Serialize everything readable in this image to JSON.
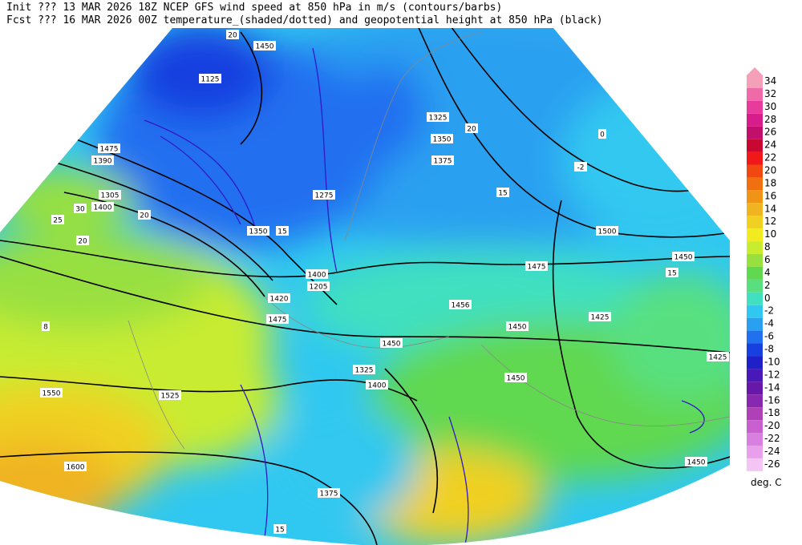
{
  "header": {
    "line1": "Init  ??? 13 MAR 2026 18Z  NCEP GFS wind speed at 850 hPa in m/s (contours/barbs)",
    "line2": "Fcst ??? 16 MAR 2026 00Z  temperature_(shaded/dotted) and geopotential height at 850 hPa (black)"
  },
  "colorbar": {
    "levels": [
      "34",
      "32",
      "30",
      "28",
      "26",
      "24",
      "22",
      "20",
      "18",
      "16",
      "14",
      "12",
      "10",
      "8",
      "6",
      "4",
      "2",
      "0",
      "-2",
      "-4",
      "-6",
      "-8",
      "-10",
      "-12",
      "-14",
      "-16",
      "-18",
      "-20",
      "-22",
      "-24",
      "-26"
    ],
    "colors": [
      "#f4a0b8",
      "#ee6aa8",
      "#e83c9c",
      "#d81c8c",
      "#c0106c",
      "#c80830",
      "#f01818",
      "#f04810",
      "#f07010",
      "#f09418",
      "#f0b420",
      "#f0d020",
      "#f0ec20",
      "#c8ec30",
      "#98e040",
      "#60d850",
      "#58e080",
      "#40e0c0",
      "#30c8f0",
      "#2aa0f0",
      "#2070f0",
      "#1840e0",
      "#2020c8",
      "#4818b8",
      "#6818a8",
      "#8828b0",
      "#b040b8",
      "#c860d0",
      "#d880e0",
      "#e8a0ec",
      "#f4c4f4"
    ],
    "unit": "deg. C"
  },
  "map_labels": [
    "1450",
    "20",
    "1125",
    "1475",
    "1390",
    "1305",
    "1400",
    "25",
    "20",
    "30",
    "1350",
    "15",
    "1275",
    "1325",
    "1350",
    "1375",
    "1500",
    "1475",
    "1450",
    "1420",
    "1475",
    "1425",
    "1450",
    "1450",
    "1450",
    "1425",
    "1550",
    "1525",
    "1600",
    "1375",
    "1456",
    "1400",
    "1205",
    "15",
    "20",
    "0",
    "-2",
    "15",
    "8",
    "15",
    "1450",
    "1400",
    "1325",
    "20"
  ]
}
